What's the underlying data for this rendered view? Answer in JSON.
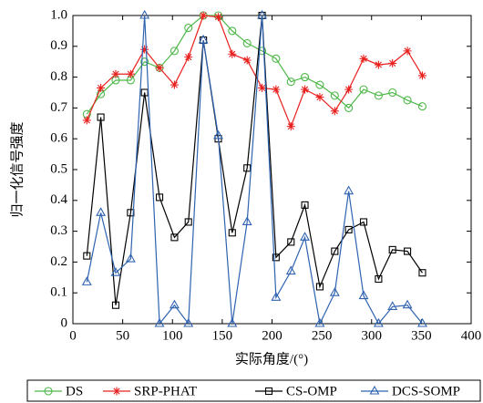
{
  "chart_data": {
    "type": "line",
    "x_label": "实际角度/(°)",
    "y_label": "归一化信号强度",
    "x": [
      14,
      28,
      43,
      58,
      72,
      87,
      102,
      116,
      131,
      146,
      160,
      175,
      190,
      204,
      219,
      233,
      248,
      263,
      277,
      292,
      307,
      321,
      336,
      351
    ],
    "series": [
      {
        "name": "DS",
        "color": "#4db848",
        "marker": "circle",
        "values": [
          0.68,
          0.745,
          0.79,
          0.79,
          0.85,
          0.83,
          0.885,
          0.96,
          1.0,
          1.0,
          0.95,
          0.91,
          0.885,
          0.86,
          0.785,
          0.8,
          0.775,
          0.74,
          0.7,
          0.76,
          0.74,
          0.75,
          0.725,
          0.705
        ]
      },
      {
        "name": "SRP-PHAT",
        "color": "#e8201e",
        "marker": "star",
        "values": [
          0.66,
          0.765,
          0.81,
          0.81,
          0.89,
          0.83,
          0.775,
          0.865,
          1.0,
          0.995,
          0.875,
          0.855,
          0.765,
          0.76,
          0.64,
          0.76,
          0.735,
          0.69,
          0.76,
          0.86,
          0.84,
          0.845,
          0.885,
          0.805
        ]
      },
      {
        "name": "CS-OMP",
        "color": "#000000",
        "marker": "square",
        "values": [
          0.22,
          0.67,
          0.06,
          0.36,
          0.75,
          0.41,
          0.28,
          0.33,
          0.92,
          0.6,
          0.295,
          0.505,
          1.0,
          0.215,
          0.265,
          0.385,
          0.12,
          0.235,
          0.305,
          0.33,
          0.145,
          0.24,
          0.235,
          0.165
        ]
      },
      {
        "name": "DCS-SOMP",
        "color": "#2f63b0",
        "marker": "triangle",
        "values": [
          0.135,
          0.36,
          0.165,
          0.21,
          1.0,
          0.0,
          0.06,
          0.0,
          0.92,
          0.61,
          0.0,
          0.33,
          1.0,
          0.085,
          0.17,
          0.28,
          0.0,
          0.1,
          0.43,
          0.09,
          0.0,
          0.055,
          0.06,
          0.0
        ]
      }
    ],
    "xlim": [
      0,
      400
    ],
    "xticks": [
      0,
      50,
      100,
      150,
      200,
      250,
      300,
      350,
      400
    ],
    "ylim": [
      0,
      1.0
    ],
    "yticks": [
      0,
      0.1,
      0.2,
      0.3,
      0.4,
      0.5,
      0.6,
      0.7,
      0.8,
      0.9,
      {
        "value": 1.0,
        "label": "1.0"
      }
    ],
    "grid": false,
    "legend": "bottom"
  }
}
